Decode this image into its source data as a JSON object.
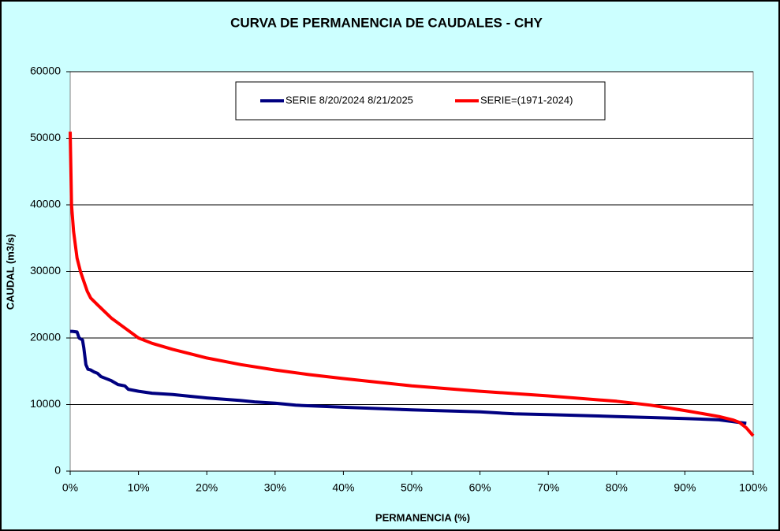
{
  "chart_data": {
    "type": "line",
    "title": "CURVA DE PERMANENCIA DE CAUDALES - CHY",
    "x_label": "PERMANENCIA (%)",
    "y_label": "CAUDAL (m3/s)",
    "xlim": [
      0,
      100
    ],
    "xticks": [
      {
        "value": 0,
        "label": "0%"
      },
      {
        "value": 10,
        "label": "10%"
      },
      {
        "value": 20,
        "label": "20%"
      },
      {
        "value": 30,
        "label": "30%"
      },
      {
        "value": 40,
        "label": "40%"
      },
      {
        "value": 50,
        "label": "50%"
      },
      {
        "value": 60,
        "label": "60%"
      },
      {
        "value": 70,
        "label": "70%"
      },
      {
        "value": 80,
        "label": "80%"
      },
      {
        "value": 90,
        "label": "90%"
      },
      {
        "value": 100,
        "label": "100%"
      }
    ],
    "ylim": [
      0,
      60000
    ],
    "yticks": [
      0,
      10000,
      20000,
      30000,
      40000,
      50000,
      60000
    ],
    "grid": true,
    "legend": "top",
    "series": [
      {
        "name": "SERIE 8/20/2024 8/21/2025",
        "color": "#000080",
        "x": [
          0,
          0.3,
          1,
          1.3,
          1.8,
          2.0,
          2.3,
          2.6,
          3,
          3.5,
          4,
          4.5,
          5,
          6,
          7,
          8,
          8.5,
          10,
          12,
          15,
          18,
          20,
          25,
          27,
          30,
          33,
          40,
          50,
          60,
          65,
          70,
          80,
          90,
          95,
          98,
          99
        ],
        "values": [
          21000,
          21000,
          20900,
          20000,
          19700,
          18500,
          16000,
          15300,
          15200,
          14900,
          14700,
          14200,
          14000,
          13600,
          13000,
          12800,
          12300,
          12000,
          11700,
          11500,
          11200,
          11000,
          10600,
          10400,
          10200,
          9900,
          9600,
          9200,
          8900,
          8600,
          8500,
          8200,
          7900,
          7700,
          7300,
          7200
        ]
      },
      {
        "name": "SERIE=(1971-2024)",
        "color": "#ff0000",
        "x": [
          0,
          0.2,
          0.5,
          1,
          1.5,
          2,
          2.5,
          3,
          4,
          5,
          6,
          8,
          10,
          12,
          15,
          20,
          25,
          30,
          35,
          40,
          50,
          60,
          70,
          80,
          85,
          90,
          95,
          97,
          98,
          99,
          100
        ],
        "values": [
          51000,
          40000,
          36000,
          32000,
          30000,
          28500,
          27000,
          26000,
          25000,
          24000,
          23000,
          21500,
          20000,
          19200,
          18300,
          17000,
          16000,
          15200,
          14500,
          13900,
          12800,
          12000,
          11300,
          10500,
          9900,
          9100,
          8200,
          7700,
          7300,
          6500,
          5300
        ]
      }
    ]
  }
}
